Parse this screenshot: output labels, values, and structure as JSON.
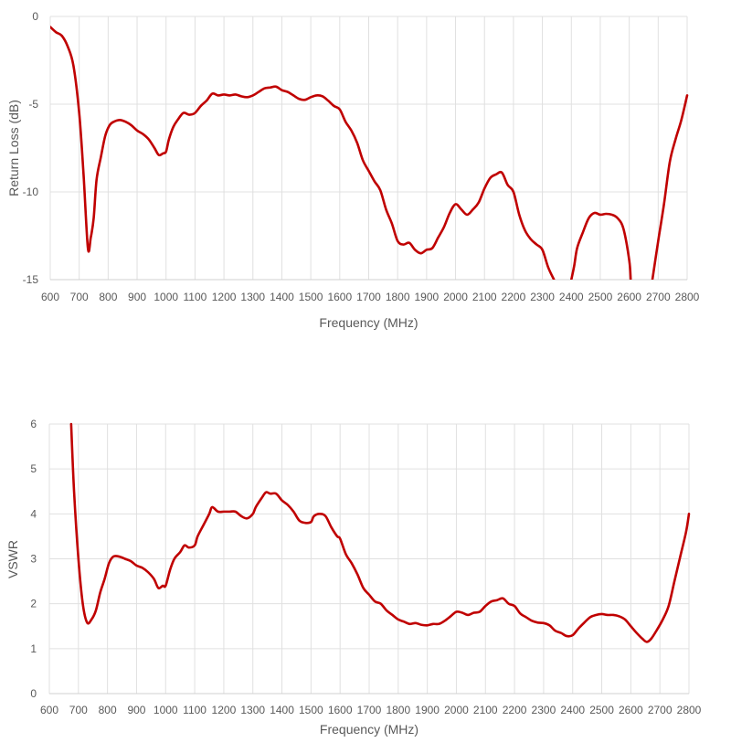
{
  "colors": {
    "series": "#c00000",
    "grid": "#e0e0e0",
    "text": "#595959"
  },
  "chart_data": [
    {
      "type": "line",
      "title": "",
      "xlabel": "Frequency (MHz)",
      "ylabel": "Return Loss (dB)",
      "xlim": [
        600,
        2800
      ],
      "ylim": [
        -15,
        0
      ],
      "xticks": [
        "600",
        "700",
        "800",
        "900",
        "1000",
        "1100",
        "1200",
        "1300",
        "1400",
        "1500",
        "1600",
        "1700",
        "1800",
        "1900",
        "2000",
        "2100",
        "2200",
        "2300",
        "2400",
        "2500",
        "2600",
        "2700",
        "2800"
      ],
      "yticks": [
        "0",
        "-5",
        "-10",
        "-15"
      ],
      "grid": true,
      "legend": "none",
      "series": [
        {
          "values": [
            [
              600,
              -0.6
            ],
            [
              620,
              -0.9
            ],
            [
              640,
              -1.1
            ],
            [
              660,
              -1.7
            ],
            [
              680,
              -2.8
            ],
            [
              700,
              -5.5
            ],
            [
              715,
              -9
            ],
            [
              730,
              -13.2
            ],
            [
              740,
              -12.6
            ],
            [
              750,
              -11.5
            ],
            [
              760,
              -9.3
            ],
            [
              775,
              -8
            ],
            [
              790,
              -6.8
            ],
            [
              805,
              -6.2
            ],
            [
              820,
              -6.0
            ],
            [
              840,
              -5.9
            ],
            [
              860,
              -6.0
            ],
            [
              880,
              -6.2
            ],
            [
              900,
              -6.5
            ],
            [
              920,
              -6.7
            ],
            [
              940,
              -7.0
            ],
            [
              960,
              -7.5
            ],
            [
              975,
              -7.9
            ],
            [
              990,
              -7.8
            ],
            [
              1000,
              -7.7
            ],
            [
              1010,
              -7.0
            ],
            [
              1025,
              -6.3
            ],
            [
              1040,
              -5.9
            ],
            [
              1060,
              -5.5
            ],
            [
              1080,
              -5.6
            ],
            [
              1100,
              -5.5
            ],
            [
              1120,
              -5.1
            ],
            [
              1140,
              -4.8
            ],
            [
              1160,
              -4.4
            ],
            [
              1180,
              -4.5
            ],
            [
              1200,
              -4.45
            ],
            [
              1220,
              -4.5
            ],
            [
              1240,
              -4.45
            ],
            [
              1260,
              -4.55
            ],
            [
              1280,
              -4.6
            ],
            [
              1300,
              -4.5
            ],
            [
              1320,
              -4.3
            ],
            [
              1340,
              -4.1
            ],
            [
              1360,
              -4.05
            ],
            [
              1380,
              -4.0
            ],
            [
              1400,
              -4.2
            ],
            [
              1420,
              -4.3
            ],
            [
              1440,
              -4.5
            ],
            [
              1460,
              -4.7
            ],
            [
              1480,
              -4.75
            ],
            [
              1500,
              -4.6
            ],
            [
              1520,
              -4.5
            ],
            [
              1540,
              -4.55
            ],
            [
              1560,
              -4.8
            ],
            [
              1580,
              -5.1
            ],
            [
              1600,
              -5.3
            ],
            [
              1620,
              -6.0
            ],
            [
              1640,
              -6.5
            ],
            [
              1660,
              -7.2
            ],
            [
              1680,
              -8.2
            ],
            [
              1700,
              -8.8
            ],
            [
              1720,
              -9.4
            ],
            [
              1740,
              -9.9
            ],
            [
              1760,
              -11.0
            ],
            [
              1780,
              -11.8
            ],
            [
              1800,
              -12.8
            ],
            [
              1820,
              -13.0
            ],
            [
              1840,
              -12.9
            ],
            [
              1860,
              -13.3
            ],
            [
              1880,
              -13.5
            ],
            [
              1900,
              -13.3
            ],
            [
              1920,
              -13.2
            ],
            [
              1940,
              -12.6
            ],
            [
              1960,
              -12.0
            ],
            [
              1980,
              -11.2
            ],
            [
              2000,
              -10.7
            ],
            [
              2020,
              -11.0
            ],
            [
              2040,
              -11.3
            ],
            [
              2060,
              -11.0
            ],
            [
              2080,
              -10.6
            ],
            [
              2100,
              -9.8
            ],
            [
              2120,
              -9.2
            ],
            [
              2140,
              -9.0
            ],
            [
              2160,
              -8.9
            ],
            [
              2180,
              -9.6
            ],
            [
              2200,
              -10.0
            ],
            [
              2220,
              -11.3
            ],
            [
              2240,
              -12.2
            ],
            [
              2260,
              -12.7
            ],
            [
              2280,
              -13.0
            ],
            [
              2300,
              -13.3
            ],
            [
              2320,
              -14.3
            ],
            [
              2340,
              -15.0
            ]
          ]
        },
        {
          "values": [
            [
              2400,
              -15.0
            ],
            [
              2410,
              -14.2
            ],
            [
              2420,
              -13.2
            ],
            [
              2440,
              -12.3
            ],
            [
              2460,
              -11.5
            ],
            [
              2480,
              -11.2
            ],
            [
              2500,
              -11.3
            ],
            [
              2520,
              -11.25
            ],
            [
              2540,
              -11.3
            ],
            [
              2560,
              -11.5
            ],
            [
              2580,
              -12.1
            ],
            [
              2600,
              -13.9
            ],
            [
              2605,
              -15.0
            ]
          ]
        },
        {
          "values": [
            [
              2680,
              -15.0
            ],
            [
              2700,
              -12.8
            ],
            [
              2720,
              -10.7
            ],
            [
              2740,
              -8.3
            ],
            [
              2760,
              -7.0
            ],
            [
              2780,
              -5.9
            ],
            [
              2800,
              -4.5
            ]
          ]
        }
      ]
    },
    {
      "type": "line",
      "title": "",
      "xlabel": "Frequency (MHz)",
      "ylabel": "VSWR",
      "xlim": [
        600,
        2800
      ],
      "ylim": [
        0,
        6
      ],
      "xticks": [
        "600",
        "700",
        "800",
        "900",
        "1000",
        "1100",
        "1200",
        "1300",
        "1400",
        "1500",
        "1600",
        "1700",
        "1800",
        "1900",
        "2000",
        "2100",
        "2200",
        "2300",
        "2400",
        "2500",
        "2600",
        "2700",
        "2800"
      ],
      "yticks": [
        "6",
        "5",
        "4",
        "3",
        "2",
        "1",
        "0"
      ],
      "grid": true,
      "legend": "none",
      "series": [
        {
          "values": [
            [
              675,
              6.0
            ],
            [
              685,
              4.5
            ],
            [
              700,
              3.0
            ],
            [
              715,
              2.0
            ],
            [
              730,
              1.58
            ],
            [
              745,
              1.65
            ],
            [
              760,
              1.85
            ],
            [
              775,
              2.25
            ],
            [
              790,
              2.55
            ],
            [
              805,
              2.9
            ],
            [
              820,
              3.05
            ],
            [
              840,
              3.05
            ],
            [
              860,
              3.0
            ],
            [
              880,
              2.95
            ],
            [
              900,
              2.85
            ],
            [
              920,
              2.8
            ],
            [
              940,
              2.7
            ],
            [
              960,
              2.55
            ],
            [
              975,
              2.35
            ],
            [
              990,
              2.4
            ],
            [
              1000,
              2.4
            ],
            [
              1015,
              2.75
            ],
            [
              1030,
              3.0
            ],
            [
              1050,
              3.15
            ],
            [
              1065,
              3.3
            ],
            [
              1080,
              3.25
            ],
            [
              1100,
              3.3
            ],
            [
              1110,
              3.5
            ],
            [
              1130,
              3.75
            ],
            [
              1150,
              4.0
            ],
            [
              1160,
              4.15
            ],
            [
              1180,
              4.05
            ],
            [
              1200,
              4.05
            ],
            [
              1220,
              4.05
            ],
            [
              1240,
              4.05
            ],
            [
              1260,
              3.95
            ],
            [
              1280,
              3.9
            ],
            [
              1300,
              4.0
            ],
            [
              1310,
              4.15
            ],
            [
              1330,
              4.35
            ],
            [
              1345,
              4.48
            ],
            [
              1360,
              4.45
            ],
            [
              1380,
              4.45
            ],
            [
              1400,
              4.3
            ],
            [
              1420,
              4.2
            ],
            [
              1440,
              4.05
            ],
            [
              1460,
              3.85
            ],
            [
              1480,
              3.8
            ],
            [
              1500,
              3.82
            ],
            [
              1510,
              3.95
            ],
            [
              1530,
              4.0
            ],
            [
              1550,
              3.95
            ],
            [
              1570,
              3.7
            ],
            [
              1590,
              3.5
            ],
            [
              1600,
              3.45
            ],
            [
              1620,
              3.1
            ],
            [
              1640,
              2.9
            ],
            [
              1660,
              2.65
            ],
            [
              1680,
              2.35
            ],
            [
              1700,
              2.2
            ],
            [
              1720,
              2.05
            ],
            [
              1740,
              2.0
            ],
            [
              1760,
              1.85
            ],
            [
              1780,
              1.75
            ],
            [
              1800,
              1.65
            ],
            [
              1820,
              1.6
            ],
            [
              1840,
              1.55
            ],
            [
              1860,
              1.57
            ],
            [
              1880,
              1.53
            ],
            [
              1900,
              1.52
            ],
            [
              1920,
              1.55
            ],
            [
              1940,
              1.55
            ],
            [
              1960,
              1.62
            ],
            [
              1980,
              1.72
            ],
            [
              2000,
              1.82
            ],
            [
              2020,
              1.8
            ],
            [
              2040,
              1.75
            ],
            [
              2060,
              1.8
            ],
            [
              2080,
              1.82
            ],
            [
              2100,
              1.95
            ],
            [
              2120,
              2.05
            ],
            [
              2140,
              2.08
            ],
            [
              2160,
              2.12
            ],
            [
              2180,
              2.0
            ],
            [
              2200,
              1.95
            ],
            [
              2220,
              1.78
            ],
            [
              2240,
              1.7
            ],
            [
              2260,
              1.62
            ],
            [
              2280,
              1.58
            ],
            [
              2300,
              1.57
            ],
            [
              2320,
              1.52
            ],
            [
              2340,
              1.4
            ],
            [
              2360,
              1.35
            ],
            [
              2380,
              1.28
            ],
            [
              2400,
              1.3
            ],
            [
              2420,
              1.45
            ],
            [
              2440,
              1.58
            ],
            [
              2460,
              1.7
            ],
            [
              2480,
              1.75
            ],
            [
              2500,
              1.77
            ],
            [
              2520,
              1.75
            ],
            [
              2540,
              1.75
            ],
            [
              2560,
              1.72
            ],
            [
              2580,
              1.65
            ],
            [
              2600,
              1.5
            ],
            [
              2620,
              1.35
            ],
            [
              2640,
              1.22
            ],
            [
              2655,
              1.15
            ],
            [
              2670,
              1.22
            ],
            [
              2690,
              1.42
            ],
            [
              2710,
              1.65
            ],
            [
              2730,
              1.95
            ],
            [
              2750,
              2.5
            ],
            [
              2770,
              3.05
            ],
            [
              2790,
              3.6
            ],
            [
              2800,
              4.0
            ]
          ]
        }
      ]
    }
  ]
}
